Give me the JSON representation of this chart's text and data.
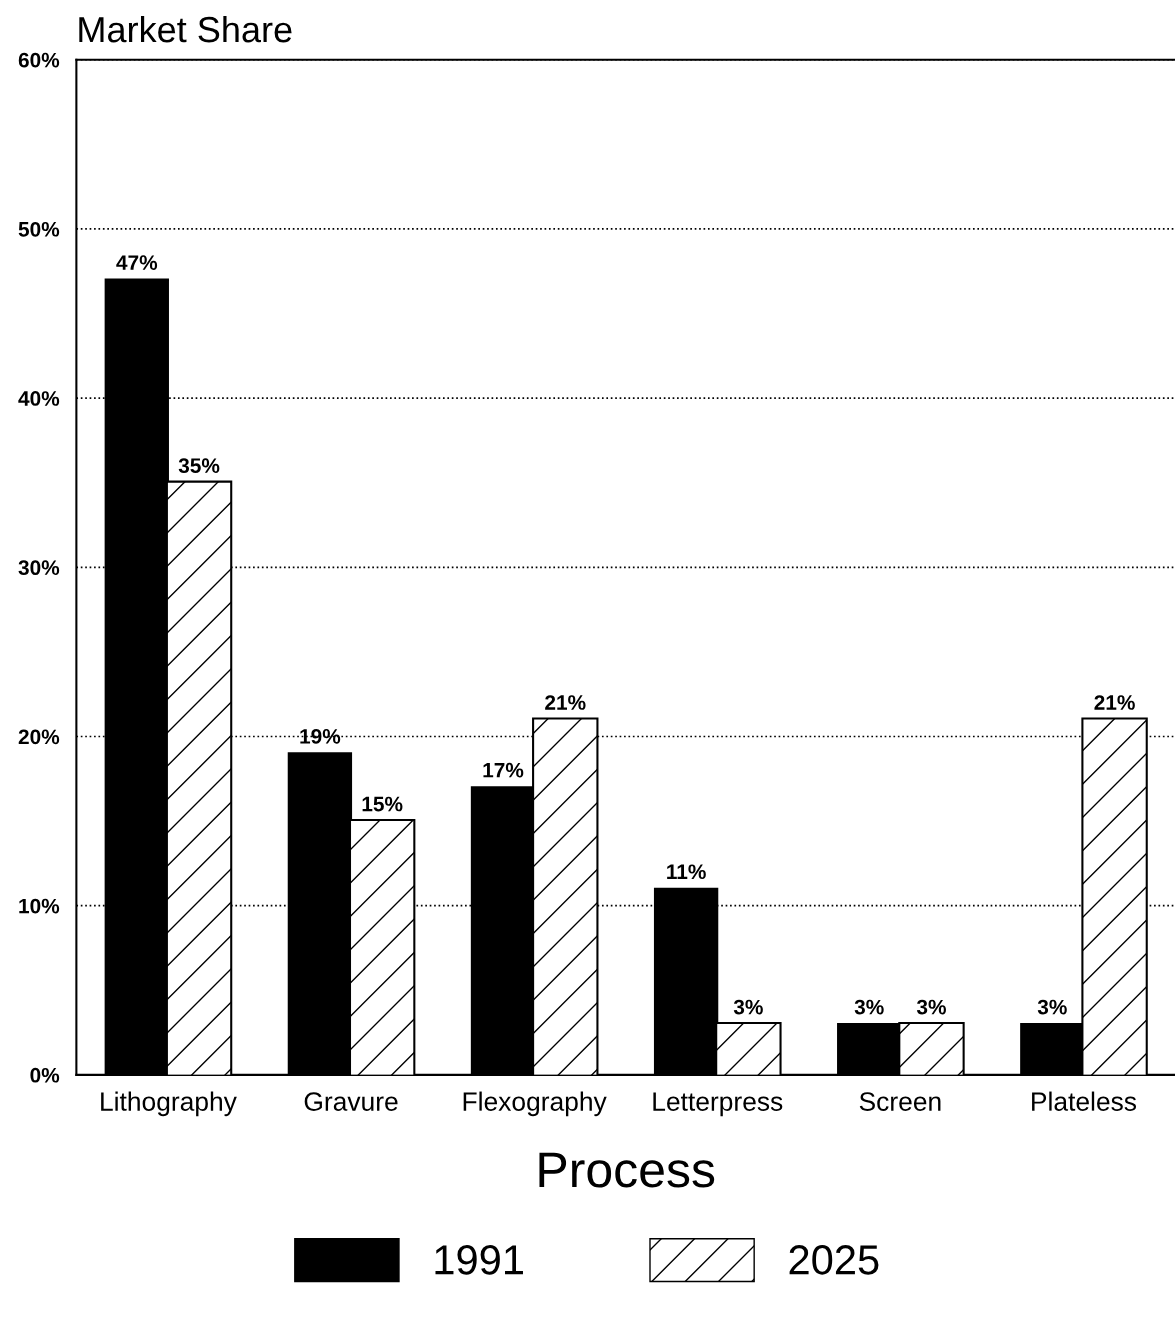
{
  "chart_data": {
    "type": "bar",
    "ylabel": "Market Share",
    "xlabel": "Process",
    "categories": [
      "Lithography",
      "Gravure",
      "Flexography",
      "Letterpress",
      "Screen",
      "Plateless"
    ],
    "series": [
      {
        "name": "1991",
        "color": "#000000",
        "values": [
          47,
          19,
          17,
          11,
          3,
          3
        ],
        "value_labels": [
          "47%",
          "19%",
          "17%",
          "11%",
          "3%",
          "3%"
        ]
      },
      {
        "name": "2025",
        "color": "#ffffff",
        "values": [
          35,
          15,
          21,
          3,
          3,
          21
        ],
        "value_labels": [
          "35%",
          "15%",
          "21%",
          "3%",
          "3%",
          "21%"
        ]
      }
    ],
    "ylim": [
      0,
      60
    ],
    "yticks": [
      {
        "value": 0,
        "label": "0%"
      },
      {
        "value": 10,
        "label": "10%"
      },
      {
        "value": 20,
        "label": "20%"
      },
      {
        "value": 30,
        "label": "30%"
      },
      {
        "value": 40,
        "label": "40%"
      },
      {
        "value": 50,
        "label": "50%"
      },
      {
        "value": 60,
        "label": "60%"
      }
    ],
    "grid": "y",
    "legend": "bottom"
  }
}
